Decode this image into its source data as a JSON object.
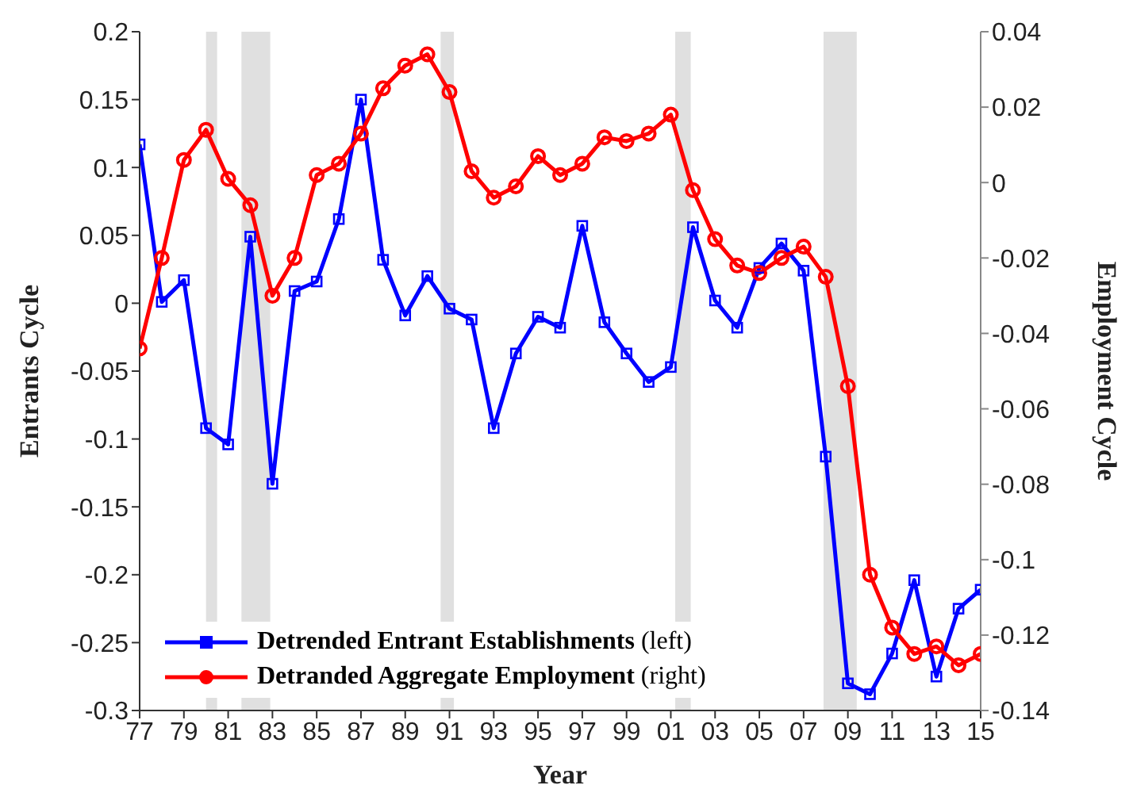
{
  "chart_data": {
    "type": "line",
    "xlabel": "Year",
    "ylabel": "Entrants Cycle",
    "y2label": "Employment Cycle",
    "x": [
      1977,
      1978,
      1979,
      1980,
      1981,
      1982,
      1983,
      1984,
      1985,
      1986,
      1987,
      1988,
      1989,
      1990,
      1991,
      1992,
      1993,
      1994,
      1995,
      1996,
      1997,
      1998,
      1999,
      2000,
      2001,
      2002,
      2003,
      2004,
      2005,
      2006,
      2007,
      2008,
      2009,
      2010,
      2011,
      2012,
      2013,
      2014,
      2015
    ],
    "series": [
      {
        "name": "Detrended Entrant Establishments (left)",
        "color": "#0000ff",
        "marker": "square",
        "values": [
          0.117,
          0.001,
          0.017,
          -0.092,
          -0.104,
          0.049,
          -0.133,
          0.009,
          0.016,
          0.062,
          0.15,
          0.032,
          -0.009,
          0.02,
          -0.004,
          -0.012,
          -0.092,
          -0.037,
          -0.01,
          -0.018,
          0.057,
          -0.014,
          -0.037,
          -0.058,
          -0.047,
          0.056,
          0.002,
          -0.018,
          0.026,
          0.044,
          0.024,
          -0.113,
          -0.28,
          -0.288,
          -0.258,
          -0.204,
          -0.275,
          -0.225,
          -0.211
        ]
      },
      {
        "name": "Detranded Aggregate Employment (right)",
        "color": "#ff0000",
        "marker": "circle",
        "axis": "y2",
        "values": [
          -0.044,
          -0.02,
          0.006,
          0.014,
          0.001,
          -0.006,
          -0.03,
          -0.02,
          0.002,
          0.005,
          0.013,
          0.025,
          0.031,
          0.034,
          0.024,
          0.003,
          -0.004,
          -0.001,
          0.007,
          0.002,
          0.005,
          0.012,
          0.011,
          0.013,
          0.018,
          -0.002,
          -0.015,
          -0.022,
          -0.024,
          -0.02,
          -0.017,
          -0.025,
          -0.054,
          -0.104,
          -0.118,
          -0.125,
          -0.123,
          -0.128,
          -0.125
        ]
      }
    ],
    "xlim": [
      1977,
      2015
    ],
    "xticks": [
      {
        "value": 1977,
        "label": "77"
      },
      {
        "value": 1979,
        "label": "79"
      },
      {
        "value": 1981,
        "label": "81"
      },
      {
        "value": 1983,
        "label": "83"
      },
      {
        "value": 1985,
        "label": "85"
      },
      {
        "value": 1987,
        "label": "87"
      },
      {
        "value": 1989,
        "label": "89"
      },
      {
        "value": 1991,
        "label": "91"
      },
      {
        "value": 1993,
        "label": "93"
      },
      {
        "value": 1995,
        "label": "95"
      },
      {
        "value": 1997,
        "label": "97"
      },
      {
        "value": 1999,
        "label": "99"
      },
      {
        "value": 2001,
        "label": "01"
      },
      {
        "value": 2003,
        "label": "03"
      },
      {
        "value": 2005,
        "label": "05"
      },
      {
        "value": 2007,
        "label": "07"
      },
      {
        "value": 2009,
        "label": "09"
      },
      {
        "value": 2011,
        "label": "11"
      },
      {
        "value": 2013,
        "label": "13"
      },
      {
        "value": 2015,
        "label": "15"
      }
    ],
    "ylim": [
      -0.3,
      0.2
    ],
    "yticks": [
      -0.3,
      -0.25,
      -0.2,
      -0.15,
      -0.1,
      -0.05,
      0,
      0.05,
      0.1,
      0.15,
      0.2
    ],
    "y2lim": [
      -0.14,
      0.04
    ],
    "y2ticks": [
      -0.14,
      -0.12,
      -0.1,
      -0.08,
      -0.06,
      -0.04,
      -0.02,
      0,
      0.02,
      0.04
    ],
    "bands": [
      {
        "axis": "x",
        "from": 1980.0,
        "to": 1980.5,
        "color": "#e0e0e0"
      },
      {
        "axis": "x",
        "from": 1981.6,
        "to": 1982.9,
        "color": "#e0e0e0"
      },
      {
        "axis": "x",
        "from": 1990.6,
        "to": 1991.2,
        "color": "#e0e0e0"
      },
      {
        "axis": "x",
        "from": 2001.2,
        "to": 2001.9,
        "color": "#e0e0e0"
      },
      {
        "axis": "x",
        "from": 2007.9,
        "to": 2009.4,
        "color": "#e0e0e0"
      }
    ],
    "grid": false,
    "legend": "bottom left",
    "line_style": "solid"
  }
}
